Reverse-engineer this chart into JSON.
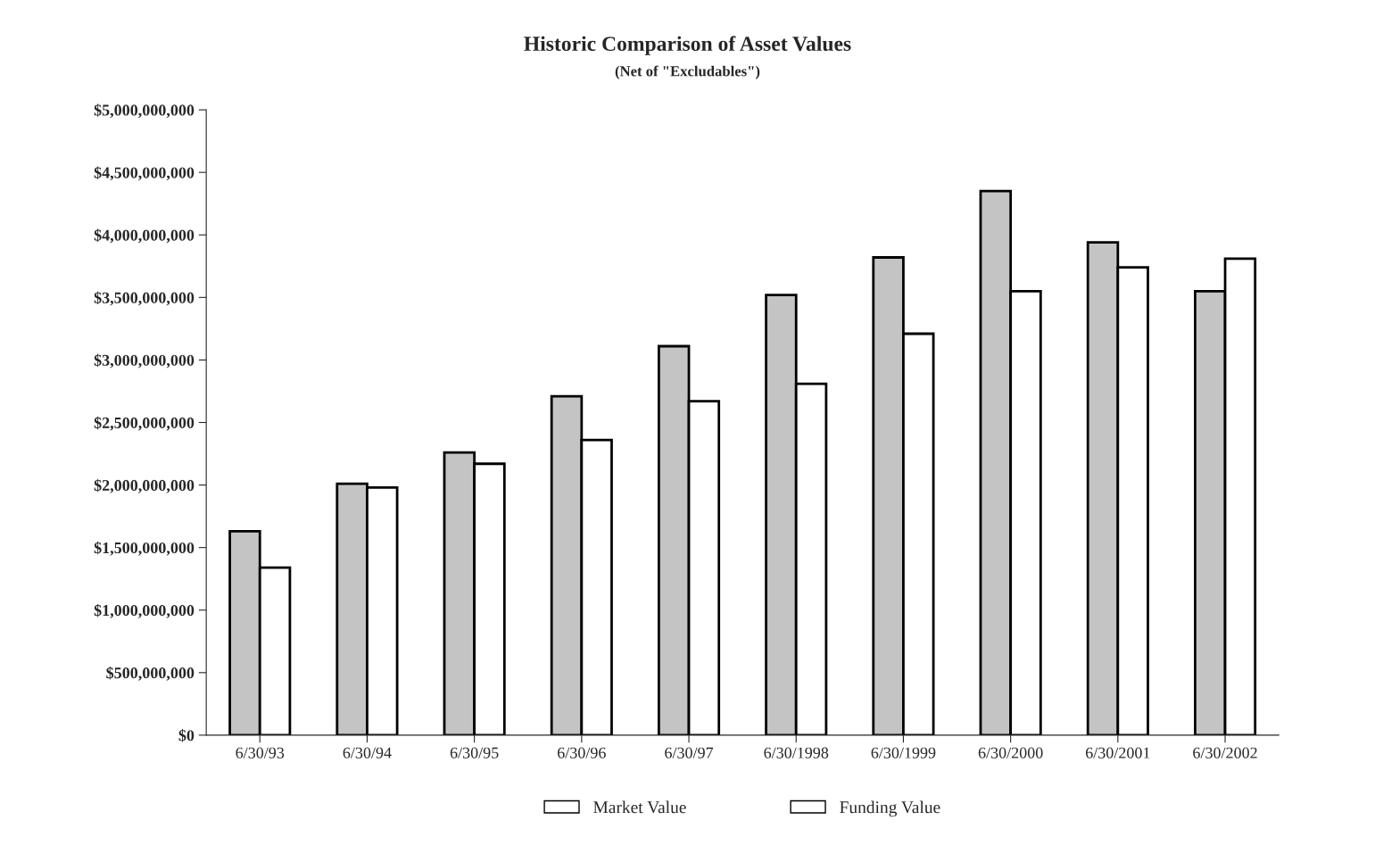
{
  "chart_data": {
    "type": "bar",
    "title": "Historic Comparison of Asset Values",
    "subtitle": "(Net of \"Excludables\")",
    "categories": [
      "6/30/93",
      "6/30/94",
      "6/30/95",
      "6/30/96",
      "6/30/97",
      "6/30/1998",
      "6/30/1999",
      "6/30/2000",
      "6/30/2001",
      "6/30/2002"
    ],
    "series": [
      {
        "name": "Market Value",
        "color": "#c4c4c4",
        "values": [
          1630000000,
          2010000000,
          2260000000,
          2710000000,
          3110000000,
          3520000000,
          3820000000,
          4350000000,
          3940000000,
          3550000000
        ]
      },
      {
        "name": "Funding Value",
        "color": "#ffffff",
        "values": [
          1340000000,
          1980000000,
          2170000000,
          2360000000,
          2670000000,
          2810000000,
          3210000000,
          3550000000,
          3740000000,
          3810000000
        ]
      }
    ],
    "ylim": [
      0,
      5000000000
    ],
    "yticks": [
      {
        "value": 0,
        "label": "$0"
      },
      {
        "value": 500000000,
        "label": "$500,000,000"
      },
      {
        "value": 1000000000,
        "label": "$1,000,000,000"
      },
      {
        "value": 1500000000,
        "label": "$1,500,000,000"
      },
      {
        "value": 2000000000,
        "label": "$2,000,000,000"
      },
      {
        "value": 2500000000,
        "label": "$2,500,000,000"
      },
      {
        "value": 3000000000,
        "label": "$3,000,000,000"
      },
      {
        "value": 3500000000,
        "label": "$3,500,000,000"
      },
      {
        "value": 4000000000,
        "label": "$4,000,000,000"
      },
      {
        "value": 4500000000,
        "label": "$4,500,000,000"
      },
      {
        "value": 5000000000,
        "label": "$5,000,000,000"
      }
    ],
    "grid": false,
    "legend": "bottom"
  }
}
